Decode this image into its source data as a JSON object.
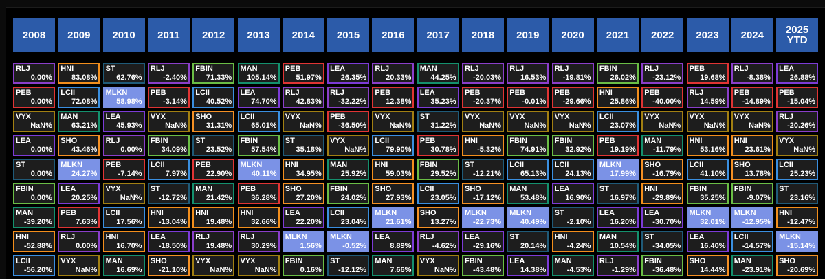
{
  "colors": {
    "header_bg": "#2c5ba9",
    "cell_bg": "#1d1d1d",
    "mlkn_fill": "#7b92e6",
    "tickers": {
      "RLJ": "#8a3ec9",
      "HNI": "#f28e1c",
      "ST": "#1f5a78",
      "FBIN": "#6abd45",
      "MAN": "#14906d",
      "PEB": "#e03434",
      "LEA": "#7c3bd6",
      "LCII": "#3a8fe0",
      "MLKN": "#7b92e6",
      "VYX": "#a17f12",
      "SHO": "#f59024"
    }
  },
  "years": [
    "2008",
    "2009",
    "2010",
    "2011",
    "2012",
    "2013",
    "2014",
    "2015",
    "2016",
    "2017",
    "2018",
    "2019",
    "2020",
    "2021",
    "2022",
    "2023",
    "2024",
    "2025\nYTD"
  ],
  "columns": [
    [
      [
        "RLJ",
        "0.00%"
      ],
      [
        "PEB",
        "0.00%"
      ],
      [
        "VYX",
        "NaN%"
      ],
      [
        "LEA",
        "0.00%"
      ],
      [
        "ST",
        "0.00%"
      ],
      [
        "FBIN",
        "0.00%"
      ],
      [
        "MAN",
        "-39.20%"
      ],
      [
        "HNI",
        "-52.88%"
      ],
      [
        "LCII",
        "-56.20%"
      ]
    ],
    [
      [
        "HNI",
        "83.08%"
      ],
      [
        "LCII",
        "72.08%"
      ],
      [
        "MAN",
        "63.21%"
      ],
      [
        "SHO",
        "43.46%"
      ],
      [
        "MLKN",
        "24.27%"
      ],
      [
        "LEA",
        "20.25%"
      ],
      [
        "PEB",
        "7.63%"
      ],
      [
        "RLJ",
        "0.00%"
      ],
      [
        "VYX",
        "NaN%"
      ]
    ],
    [
      [
        "ST",
        "62.76%"
      ],
      [
        "MLKN",
        "58.98%"
      ],
      [
        "LEA",
        "45.93%"
      ],
      [
        "RLJ",
        "0.00%"
      ],
      [
        "PEB",
        "-7.14%"
      ],
      [
        "VYX",
        "NaN%"
      ],
      [
        "LCII",
        "17.56%"
      ],
      [
        "HNI",
        "16.70%"
      ],
      [
        "MAN",
        "16.69%"
      ]
    ],
    [
      [
        "RLJ",
        "-2.40%"
      ],
      [
        "PEB",
        "-3.14%"
      ],
      [
        "VYX",
        "NaN%"
      ],
      [
        "FBIN",
        "34.09%"
      ],
      [
        "LCII",
        "7.97%"
      ],
      [
        "ST",
        "-12.72%"
      ],
      [
        "HNI",
        "-13.04%"
      ],
      [
        "LEA",
        "-18.50%"
      ],
      [
        "SHO",
        "-21.10%"
      ]
    ],
    [
      [
        "FBIN",
        "71.33%"
      ],
      [
        "LCII",
        "40.52%"
      ],
      [
        "SHO",
        "31.31%"
      ],
      [
        "ST",
        "23.52%"
      ],
      [
        "PEB",
        "22.90%"
      ],
      [
        "MAN",
        "21.42%"
      ],
      [
        "HNI",
        "19.48%"
      ],
      [
        "RLJ",
        "19.48%"
      ],
      [
        "VYX",
        "NaN%"
      ]
    ],
    [
      [
        "MAN",
        "105.14%"
      ],
      [
        "LEA",
        "74.70%"
      ],
      [
        "LCII",
        "65.01%"
      ],
      [
        "FBIN",
        "57.54%"
      ],
      [
        "MLKN",
        "40.11%"
      ],
      [
        "PEB",
        "36.28%"
      ],
      [
        "HNI",
        "32.66%"
      ],
      [
        "RLJ",
        "30.29%"
      ],
      [
        "VYX",
        "NaN%"
      ]
    ],
    [
      [
        "PEB",
        "51.97%"
      ],
      [
        "RLJ",
        "42.83%"
      ],
      [
        "VYX",
        "NaN%"
      ],
      [
        "ST",
        "35.18%"
      ],
      [
        "HNI",
        "34.95%"
      ],
      [
        "SHO",
        "27.20%"
      ],
      [
        "LEA",
        "22.20%"
      ],
      [
        "MLKN",
        "1.56%"
      ],
      [
        "FBIN",
        "0.16%"
      ]
    ],
    [
      [
        "LEA",
        "26.35%"
      ],
      [
        "RLJ",
        "-32.22%"
      ],
      [
        "PEB",
        "-36.50%"
      ],
      [
        "VYX",
        "NaN%"
      ],
      [
        "MAN",
        "25.92%"
      ],
      [
        "FBIN",
        "24.02%"
      ],
      [
        "LCII",
        "23.04%"
      ],
      [
        "MLKN",
        "-0.52%"
      ],
      [
        "ST",
        "-12.12%"
      ]
    ],
    [
      [
        "RLJ",
        "20.33%"
      ],
      [
        "PEB",
        "12.38%"
      ],
      [
        "VYX",
        "NaN%"
      ],
      [
        "LCII",
        "79.90%"
      ],
      [
        "HNI",
        "59.03%"
      ],
      [
        "SHO",
        "27.93%"
      ],
      [
        "MLKN",
        "21.61%"
      ],
      [
        "LEA",
        "8.89%"
      ],
      [
        "MAN",
        "7.66%"
      ]
    ],
    [
      [
        "MAN",
        "44.25%"
      ],
      [
        "LEA",
        "35.23%"
      ],
      [
        "ST",
        "31.22%"
      ],
      [
        "PEB",
        "30.78%"
      ],
      [
        "FBIN",
        "29.52%"
      ],
      [
        "LCII",
        "23.05%"
      ],
      [
        "SHO",
        "13.27%"
      ],
      [
        "RLJ",
        "-4.62%"
      ],
      [
        "VYX",
        "NaN%"
      ]
    ],
    [
      [
        "RLJ",
        "-20.03%"
      ],
      [
        "PEB",
        "-20.37%"
      ],
      [
        "VYX",
        "NaN%"
      ],
      [
        "HNI",
        "-5.32%"
      ],
      [
        "ST",
        "-12.21%"
      ],
      [
        "SHO",
        "-17.12%"
      ],
      [
        "MLKN",
        "-22.73%"
      ],
      [
        "LEA",
        "-29.16%"
      ],
      [
        "FBIN",
        "-43.48%"
      ]
    ],
    [
      [
        "RLJ",
        "16.53%"
      ],
      [
        "PEB",
        "-0.01%"
      ],
      [
        "VYX",
        "NaN%"
      ],
      [
        "FBIN",
        "74.91%"
      ],
      [
        "LCII",
        "65.13%"
      ],
      [
        "MAN",
        "53.48%"
      ],
      [
        "MLKN",
        "40.49%"
      ],
      [
        "ST",
        "20.14%"
      ],
      [
        "LEA",
        "14.38%"
      ]
    ],
    [
      [
        "RLJ",
        "-19.81%"
      ],
      [
        "PEB",
        "-29.66%"
      ],
      [
        "VYX",
        "NaN%"
      ],
      [
        "FBIN",
        "32.92%"
      ],
      [
        "LCII",
        "24.13%"
      ],
      [
        "LEA",
        "16.90%"
      ],
      [
        "ST",
        "-2.10%"
      ],
      [
        "HNI",
        "-4.24%"
      ],
      [
        "MAN",
        "-4.53%"
      ]
    ],
    [
      [
        "FBIN",
        "26.02%"
      ],
      [
        "HNI",
        "25.86%"
      ],
      [
        "LCII",
        "23.07%"
      ],
      [
        "PEB",
        "19.19%"
      ],
      [
        "MLKN",
        "17.99%"
      ],
      [
        "ST",
        "16.97%"
      ],
      [
        "LEA",
        "16.20%"
      ],
      [
        "MAN",
        "10.54%"
      ],
      [
        "RLJ",
        "-1.29%"
      ]
    ],
    [
      [
        "RLJ",
        "-23.12%"
      ],
      [
        "PEB",
        "-40.00%"
      ],
      [
        "VYX",
        "NaN%"
      ],
      [
        "MAN",
        "-11.79%"
      ],
      [
        "SHO",
        "-16.79%"
      ],
      [
        "HNI",
        "-29.89%"
      ],
      [
        "LEA",
        "-30.70%"
      ],
      [
        "ST",
        "-34.05%"
      ],
      [
        "FBIN",
        "-36.48%"
      ]
    ],
    [
      [
        "PEB",
        "19.68%"
      ],
      [
        "RLJ",
        "14.59%"
      ],
      [
        "VYX",
        "NaN%"
      ],
      [
        "HNI",
        "53.16%"
      ],
      [
        "LCII",
        "41.10%"
      ],
      [
        "FBIN",
        "35.25%"
      ],
      [
        "MLKN",
        "32.01%"
      ],
      [
        "LEA",
        "16.40%"
      ],
      [
        "SHO",
        "14.44%"
      ]
    ],
    [
      [
        "RLJ",
        "-8.38%"
      ],
      [
        "PEB",
        "-14.89%"
      ],
      [
        "VYX",
        "NaN%"
      ],
      [
        "HNI",
        "23.61%"
      ],
      [
        "SHO",
        "13.78%"
      ],
      [
        "FBIN",
        "-9.07%"
      ],
      [
        "MLKN",
        "-12.95%"
      ],
      [
        "LCII",
        "-14.57%"
      ],
      [
        "MAN",
        "-23.91%"
      ]
    ],
    [
      [
        "LEA",
        "26.88%"
      ],
      [
        "PEB",
        "-15.04%"
      ],
      [
        "RLJ",
        "-20.26%"
      ],
      [
        "VYX",
        "NaN%"
      ],
      [
        "LCII",
        "25.23%"
      ],
      [
        "ST",
        "23.16%"
      ],
      [
        "HNI",
        "-12.47%"
      ],
      [
        "MLKN",
        "-15.14%"
      ],
      [
        "SHO",
        "-20.69%"
      ]
    ]
  ]
}
